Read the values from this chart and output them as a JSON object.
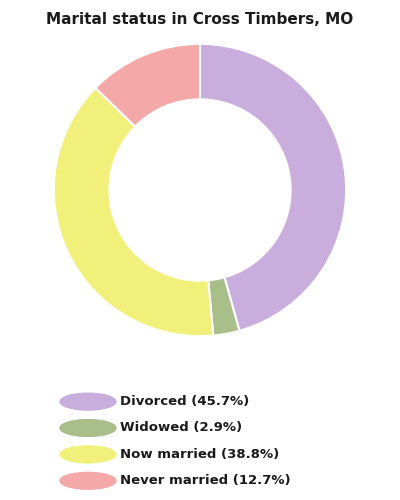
{
  "title": "Marital status in Cross Timbers, MO",
  "slices": [
    45.7,
    2.9,
    38.8,
    12.7
  ],
  "labels": [
    "Divorced (45.7%)",
    "Widowed (2.9%)",
    "Now married (38.8%)",
    "Never married (12.7%)"
  ],
  "colors": [
    "#c9aedd",
    "#a8bf8a",
    "#f0f07a",
    "#f4a8a8"
  ],
  "chart_bg": "#d4ede4",
  "legend_bg": "#00e8ff",
  "title_color": "#1a1a1a",
  "legend_text_color": "#1a1a1a",
  "start_angle": 90,
  "donut_width": 0.35,
  "fig_width": 4.0,
  "fig_height": 5.0
}
